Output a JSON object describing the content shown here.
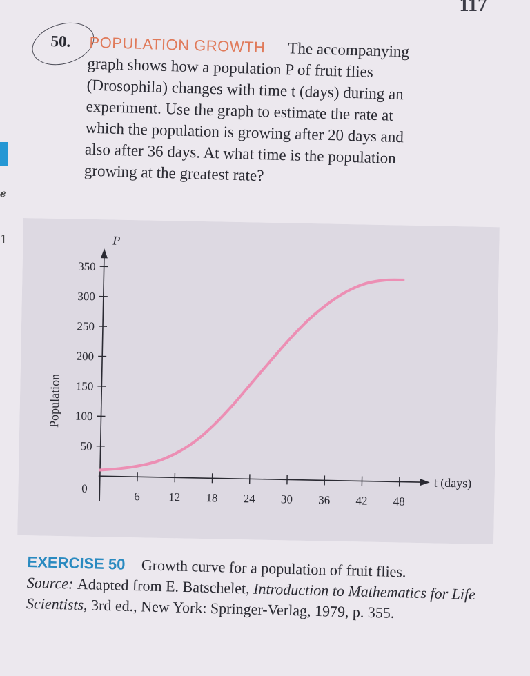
{
  "page": {
    "number": "117"
  },
  "problem": {
    "number": "50.",
    "title": "POPULATION GROWTH",
    "lines": [
      "The accompanying",
      "graph shows how a population P of fruit flies",
      "(Drosophila) changes with time t (days) during an",
      "experiment. Use the graph to estimate the rate at",
      "which the population is growing after 20 days and",
      "also after 36 days. At what time is the population",
      "growing at the greatest rate?"
    ]
  },
  "colors": {
    "curve": "#ec8fb4",
    "figure_bg": "#ddd9e2",
    "title_accent": "#e07a5a",
    "caption_accent": "#2a8ac0",
    "axis": "#2a2a32"
  },
  "chart_data": {
    "type": "line",
    "title": "",
    "xlabel": "t (days)",
    "ylabel": "Population",
    "y_axis_symbol": "P",
    "xlim": [
      0,
      48
    ],
    "ylim": [
      0,
      350
    ],
    "x_ticks": [
      0,
      6,
      12,
      18,
      24,
      30,
      36,
      42,
      48
    ],
    "y_ticks": [
      50,
      100,
      150,
      200,
      250,
      300,
      350
    ],
    "grid": false,
    "series": [
      {
        "x": [
          0,
          3,
          6,
          9,
          12,
          15,
          18,
          21,
          24,
          27,
          30,
          33,
          36,
          39,
          42,
          45,
          48
        ],
        "values": [
          10,
          13,
          18,
          26,
          40,
          60,
          88,
          122,
          160,
          198,
          235,
          268,
          295,
          316,
          330,
          336,
          337
        ]
      }
    ]
  },
  "caption": {
    "label": "EXERCISE 50",
    "text": "Growth curve for a population of fruit flies.",
    "source_label": "Source:",
    "source_pre": "Adapted from E. Batschelet,",
    "source_title": "Introduction to Mathematics for Life Scientists,",
    "source_post": "3rd ed., New York: Springer-Verlag, 1979, p. 355."
  }
}
